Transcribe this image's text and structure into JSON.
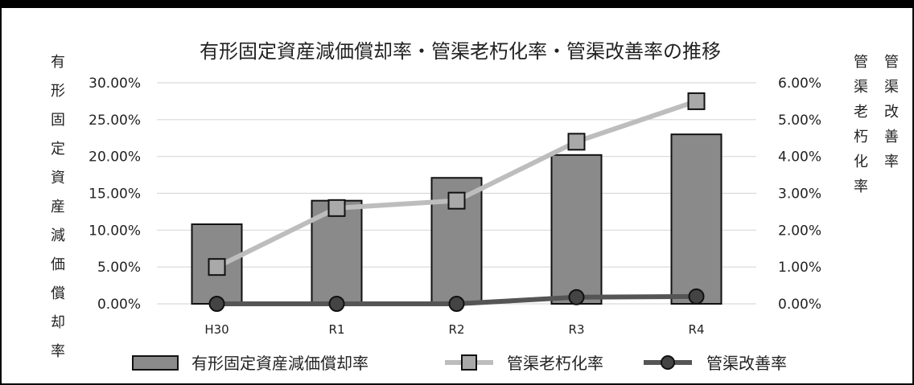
{
  "chart_data": {
    "type": "bar",
    "title": "有形固定資産減価償却率・管渠老朽化率・管渠改善率の推移",
    "categories": [
      "H30",
      "R1",
      "R2",
      "R3",
      "R4"
    ],
    "y_left": {
      "label": "有形固定資産減価償却率",
      "range": [
        0,
        30
      ],
      "ticks": [
        "0.00%",
        "5.00%",
        "10.00%",
        "15.00%",
        "20.00%",
        "25.00%",
        "30.00%"
      ]
    },
    "y_right": {
      "labels": [
        "管渠老朽化率",
        "管渠改善率"
      ],
      "range": [
        0,
        6
      ],
      "ticks": [
        "0.00%",
        "1.00%",
        "2.00%",
        "3.00%",
        "4.00%",
        "5.00%",
        "6.00%"
      ]
    },
    "grid": true,
    "legend_position": "bottom",
    "series": [
      {
        "name": "有形固定資産減価償却率",
        "kind": "bar",
        "axis": "left",
        "values": [
          10.8,
          14.0,
          17.1,
          20.2,
          23.0
        ],
        "color": "#8a8a8a"
      },
      {
        "name": "管渠老朽化率",
        "kind": "line",
        "marker": "square",
        "axis": "right",
        "values": [
          1.0,
          2.6,
          2.8,
          4.4,
          5.5
        ],
        "color": "#bdbdbd"
      },
      {
        "name": "管渠改善率",
        "kind": "line",
        "marker": "circle",
        "axis": "right",
        "values": [
          0.0,
          0.0,
          0.0,
          0.18,
          0.2
        ],
        "color": "#555555"
      }
    ]
  }
}
